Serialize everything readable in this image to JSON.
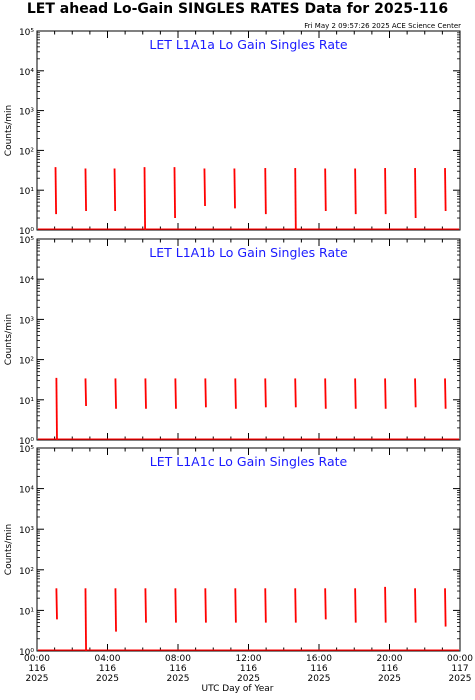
{
  "title": "LET ahead Lo-Gain SINGLES RATES Data for 2025-116",
  "timestamp": "Fri May  2 09:57:26 2025 ACE Science Center",
  "xlabel": "UTC Day of Year",
  "ylabel": "Counts/min",
  "colors": {
    "trace": "#ff0000",
    "panel_title": "#1a1aff",
    "axis": "#000000"
  },
  "chart_data": [
    {
      "type": "line",
      "title": "LET L1A1a Lo Gain Singles Rate",
      "ylabel": "Counts/min",
      "yscale": "log",
      "ylim": [
        1,
        100000
      ],
      "xlim": [
        0,
        24
      ],
      "yticks": [
        "10⁰",
        "10¹",
        "10²",
        "10³",
        "10⁴",
        "10⁵"
      ],
      "spikes": [
        {
          "x": 1.05,
          "top": 38,
          "bottom": 2.5
        },
        {
          "x": 2.75,
          "top": 35,
          "bottom": 3
        },
        {
          "x": 4.4,
          "top": 35,
          "bottom": 3
        },
        {
          "x": 6.1,
          "top": 38,
          "bottom": 1
        },
        {
          "x": 7.8,
          "top": 38,
          "bottom": 2
        },
        {
          "x": 9.5,
          "top": 35,
          "bottom": 4
        },
        {
          "x": 11.2,
          "top": 35,
          "bottom": 3.5
        },
        {
          "x": 12.95,
          "top": 36,
          "bottom": 2.5
        },
        {
          "x": 14.65,
          "top": 36,
          "bottom": 1
        },
        {
          "x": 16.35,
          "top": 35,
          "bottom": 3
        },
        {
          "x": 18.05,
          "top": 35,
          "bottom": 2.5
        },
        {
          "x": 19.75,
          "top": 36,
          "bottom": 2.5
        },
        {
          "x": 21.45,
          "top": 36,
          "bottom": 2
        },
        {
          "x": 23.15,
          "top": 36,
          "bottom": 3
        }
      ]
    },
    {
      "type": "line",
      "title": "LET L1A1b Lo Gain Singles Rate",
      "ylabel": "Counts/min",
      "yscale": "log",
      "ylim": [
        1,
        100000
      ],
      "xlim": [
        0,
        24
      ],
      "yticks": [
        "10⁰",
        "10¹",
        "10²",
        "10³",
        "10⁴",
        "10⁵"
      ],
      "spikes": [
        {
          "x": 1.1,
          "top": 35,
          "bottom": 1
        },
        {
          "x": 2.75,
          "top": 34,
          "bottom": 7
        },
        {
          "x": 4.45,
          "top": 34,
          "bottom": 6
        },
        {
          "x": 6.15,
          "top": 34,
          "bottom": 6
        },
        {
          "x": 7.85,
          "top": 34,
          "bottom": 6
        },
        {
          "x": 9.55,
          "top": 34,
          "bottom": 6.5
        },
        {
          "x": 11.25,
          "top": 34,
          "bottom": 6
        },
        {
          "x": 12.95,
          "top": 34,
          "bottom": 6.5
        },
        {
          "x": 14.65,
          "top": 34,
          "bottom": 6.5
        },
        {
          "x": 16.35,
          "top": 34,
          "bottom": 6
        },
        {
          "x": 18.05,
          "top": 34,
          "bottom": 6
        },
        {
          "x": 19.75,
          "top": 34,
          "bottom": 6
        },
        {
          "x": 21.45,
          "top": 34,
          "bottom": 6.5
        },
        {
          "x": 23.15,
          "top": 34,
          "bottom": 6
        }
      ]
    },
    {
      "type": "line",
      "title": "LET L1A1c Lo Gain Singles Rate",
      "ylabel": "Counts/min",
      "yscale": "log",
      "ylim": [
        1,
        100000
      ],
      "xlim": [
        0,
        24
      ],
      "yticks": [
        "10⁰",
        "10¹",
        "10²",
        "10³",
        "10⁴",
        "10⁵"
      ],
      "spikes": [
        {
          "x": 1.1,
          "top": 35,
          "bottom": 6
        },
        {
          "x": 2.75,
          "top": 35,
          "bottom": 1
        },
        {
          "x": 4.45,
          "top": 35,
          "bottom": 3
        },
        {
          "x": 6.15,
          "top": 35,
          "bottom": 5
        },
        {
          "x": 7.85,
          "top": 35,
          "bottom": 5
        },
        {
          "x": 9.55,
          "top": 35,
          "bottom": 5
        },
        {
          "x": 11.25,
          "top": 35,
          "bottom": 5
        },
        {
          "x": 12.95,
          "top": 35,
          "bottom": 5
        },
        {
          "x": 14.65,
          "top": 35,
          "bottom": 5
        },
        {
          "x": 16.35,
          "top": 35,
          "bottom": 6
        },
        {
          "x": 18.05,
          "top": 35,
          "bottom": 5
        },
        {
          "x": 19.75,
          "top": 38,
          "bottom": 5
        },
        {
          "x": 21.45,
          "top": 35,
          "bottom": 5
        },
        {
          "x": 23.15,
          "top": 35,
          "bottom": 4
        }
      ]
    }
  ],
  "xticks": [
    {
      "x": 0,
      "lines": [
        "00:00",
        "116",
        "2025"
      ]
    },
    {
      "x": 4,
      "lines": [
        "04:00",
        "116",
        "2025"
      ]
    },
    {
      "x": 8,
      "lines": [
        "08:00",
        "116",
        "2025"
      ]
    },
    {
      "x": 12,
      "lines": [
        "12:00",
        "116",
        "2025"
      ]
    },
    {
      "x": 16,
      "lines": [
        "16:00",
        "116",
        "2025"
      ]
    },
    {
      "x": 20,
      "lines": [
        "20:00",
        "116",
        "2025"
      ]
    },
    {
      "x": 24,
      "lines": [
        "00:00",
        "117",
        "2025"
      ]
    }
  ]
}
